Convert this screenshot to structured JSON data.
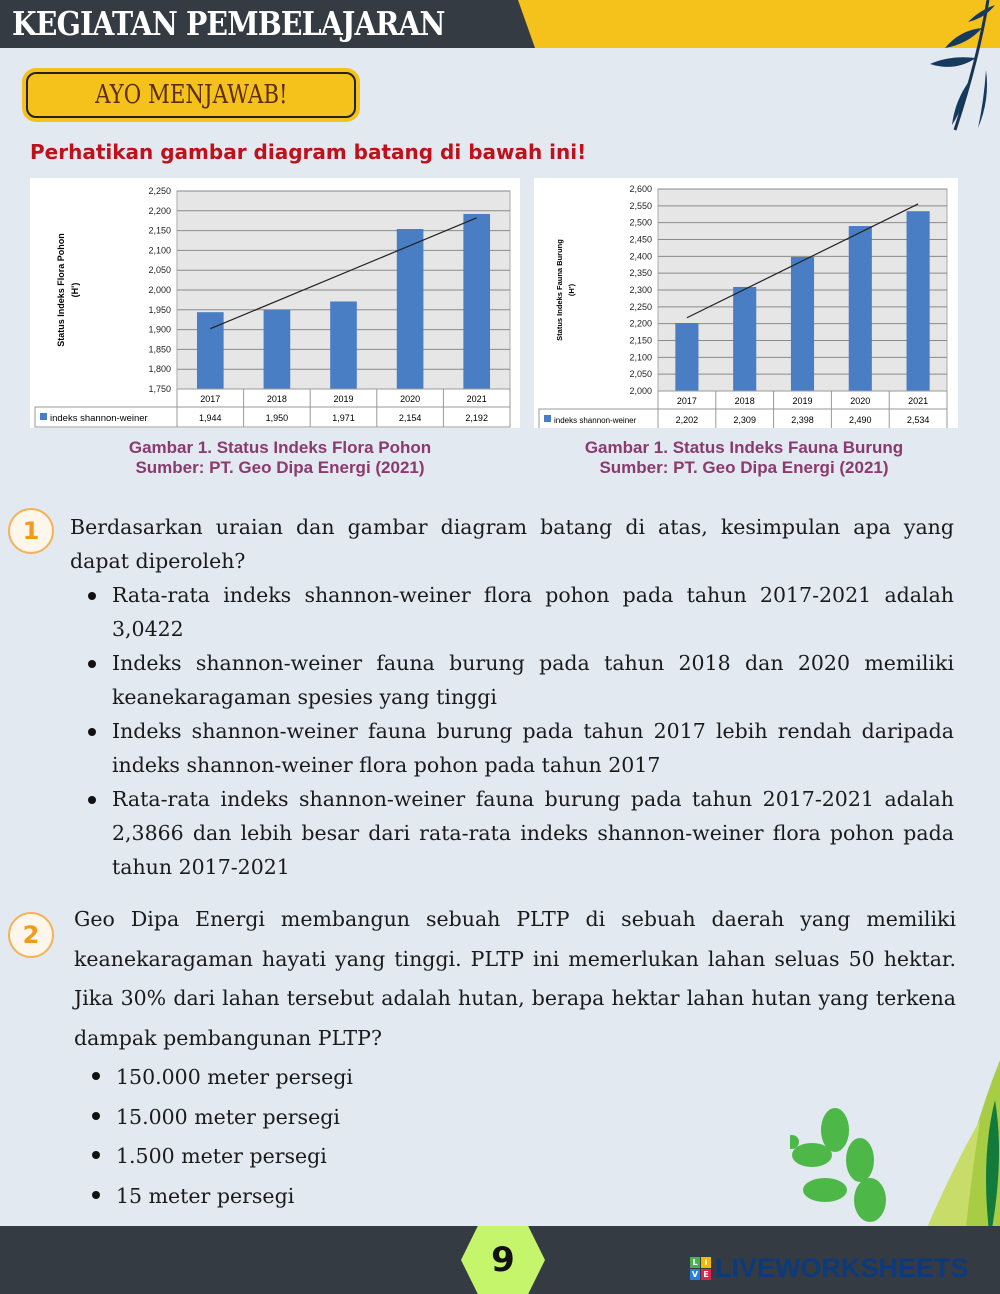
{
  "header": {
    "title": "KEGIATAN PEMBELAJARAN"
  },
  "badge": "AYO MENJAWAB!",
  "instruction": "Perhatikan gambar diagram batang di bawah ini!",
  "colors": {
    "header_dark": "#343b42",
    "accent_yellow": "#f5c21c",
    "bar": "#4a7ec4",
    "instruction": "#c0101a",
    "caption": "#8a3a6e",
    "number": "#f39a1c"
  },
  "chart_data": [
    {
      "type": "bar",
      "categories": [
        "2017",
        "2018",
        "2019",
        "2020",
        "2021"
      ],
      "values": [
        1.944,
        1.95,
        1.971,
        2.154,
        2.192
      ],
      "value_labels": [
        "1,944",
        "1,950",
        "1,971",
        "2,154",
        "2,192"
      ],
      "ylabel": "Status Indeks Flora Pohon (H')",
      "ylim": [
        1.75,
        2.25
      ],
      "ytick_step": 0.05,
      "yticks": [
        "1,750",
        "1,800",
        "1,850",
        "1,900",
        "1,950",
        "2,000",
        "2,050",
        "2,100",
        "2,150",
        "2,200",
        "2,250"
      ],
      "legend": "indeks shannon-weiner",
      "trendline": "linear",
      "grid": true,
      "data_table": true
    },
    {
      "type": "bar",
      "categories": [
        "2017",
        "2018",
        "2019",
        "2020",
        "2021"
      ],
      "values": [
        2.202,
        2.309,
        2.398,
        2.49,
        2.534
      ],
      "value_labels": [
        "2,202",
        "2,309",
        "2,398",
        "2,490",
        "2,534"
      ],
      "ylabel": "Status Indeks Fauna Burung (H')",
      "ylim": [
        2.0,
        2.6
      ],
      "ytick_step": 0.05,
      "yticks": [
        "2,000",
        "2,050",
        "2,100",
        "2,150",
        "2,200",
        "2,250",
        "2,300",
        "2,350",
        "2,400",
        "2,450",
        "2,500",
        "2,550",
        "2,600"
      ],
      "legend": "indeks shannon-weiner",
      "trendline": "linear",
      "grid": true,
      "data_table": true
    }
  ],
  "captions": [
    {
      "title": "Gambar 1. Status Indeks Flora Pohon",
      "source": "Sumber: PT. Geo Dipa Energi (2021)"
    },
    {
      "title": "Gambar 1. Status Indeks Fauna Burung",
      "source": "Sumber: PT. Geo Dipa Energi (2021)"
    }
  ],
  "questions": [
    {
      "number": "1",
      "text": "Berdasarkan uraian dan gambar diagram batang di atas, kesimpulan apa yang dapat diperoleh?",
      "options": [
        "Rata-rata indeks shannon-weiner flora pohon pada tahun 2017-2021 adalah 3,0422",
        "Indeks shannon-weiner fauna burung pada tahun 2018 dan 2020 memiliki keanekaragaman spesies yang tinggi",
        "Indeks shannon-weiner fauna burung pada tahun 2017 lebih rendah daripada indeks shannon-weiner flora pohon pada tahun 2017",
        "Rata-rata indeks shannon-weiner fauna burung pada tahun 2017-2021 adalah 2,3866 dan lebih besar dari rata-rata indeks shannon-weiner flora pohon pada tahun 2017-2021"
      ]
    },
    {
      "number": "2",
      "text": "Geo Dipa Energi membangun sebuah PLTP di sebuah daerah yang memiliki keanekaragaman hayati yang tinggi. PLTP ini memerlukan lahan seluas 50 hektar. Jika 30% dari lahan tersebut adalah hutan, berapa hektar lahan hutan yang terkena dampak pembangunan PLTP?",
      "options": [
        "150.000 meter persegi",
        "15.000 meter persegi",
        "1.500 meter persegi",
        "15 meter persegi"
      ]
    }
  ],
  "footer": {
    "page_number": "9",
    "brand": "LIVEWORKSHEETS",
    "logo_letters": [
      "L",
      "I",
      "V",
      "E"
    ]
  }
}
